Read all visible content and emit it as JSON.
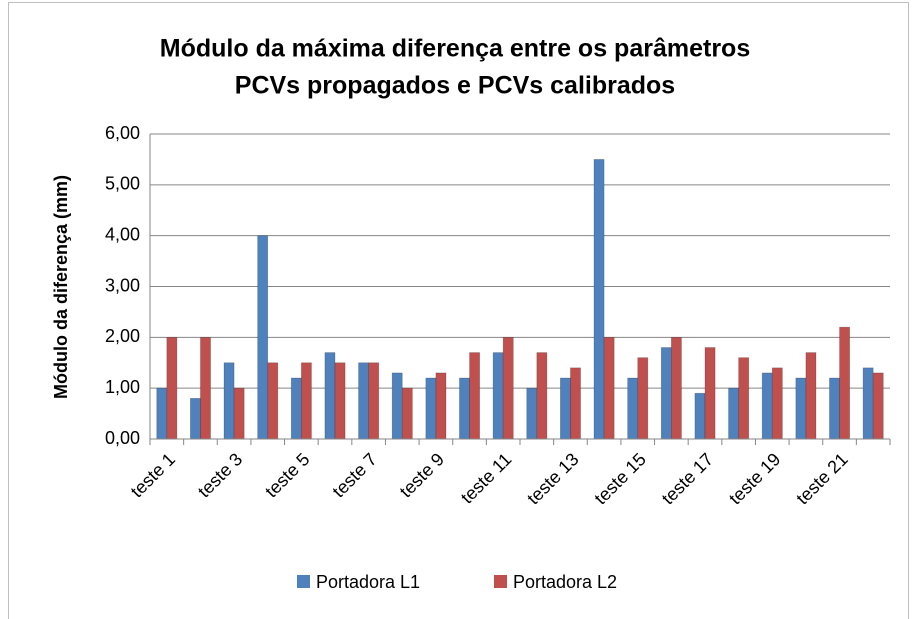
{
  "chart_data": {
    "type": "bar",
    "title": [
      "Módulo da máxima diferença entre os parâmetros",
      "PCVs propagados e PCVs calibrados"
    ],
    "y_label": "Módulo da diferença (mm)",
    "categories": [
      "teste 1",
      null,
      "teste 3",
      null,
      "teste 5",
      null,
      "teste 7",
      null,
      "teste 9",
      null,
      "teste 11",
      null,
      "teste 13",
      null,
      "teste 15",
      null,
      "teste 17",
      null,
      "teste 19",
      null,
      "teste 21",
      null
    ],
    "series": [
      {
        "name": "Portadora L1",
        "color": "#4f81bd",
        "values": [
          1.0,
          0.8,
          1.5,
          4.0,
          1.2,
          1.7,
          1.5,
          1.3,
          1.2,
          1.2,
          1.7,
          1.0,
          1.2,
          5.5,
          1.2,
          1.8,
          0.9,
          1.0,
          1.3,
          1.2,
          1.2,
          1.4
        ]
      },
      {
        "name": "Portadora L2",
        "color": "#c0504d",
        "values": [
          2.0,
          2.0,
          1.0,
          1.5,
          1.5,
          1.5,
          1.5,
          1.0,
          1.3,
          1.7,
          2.0,
          1.7,
          1.4,
          2.0,
          1.6,
          2.0,
          1.8,
          1.6,
          1.4,
          1.7,
          2.2,
          1.3
        ]
      }
    ],
    "ylim": [
      0,
      6
    ],
    "yticks": [
      {
        "value": 0,
        "label": "0,00"
      },
      {
        "value": 1,
        "label": "1,00"
      },
      {
        "value": 2,
        "label": "2,00"
      },
      {
        "value": 3,
        "label": "3,00"
      },
      {
        "value": 4,
        "label": "4,00"
      },
      {
        "value": 5,
        "label": "5,00"
      },
      {
        "value": 6,
        "label": "6,00"
      }
    ],
    "grid": true,
    "legend": "bottom"
  }
}
